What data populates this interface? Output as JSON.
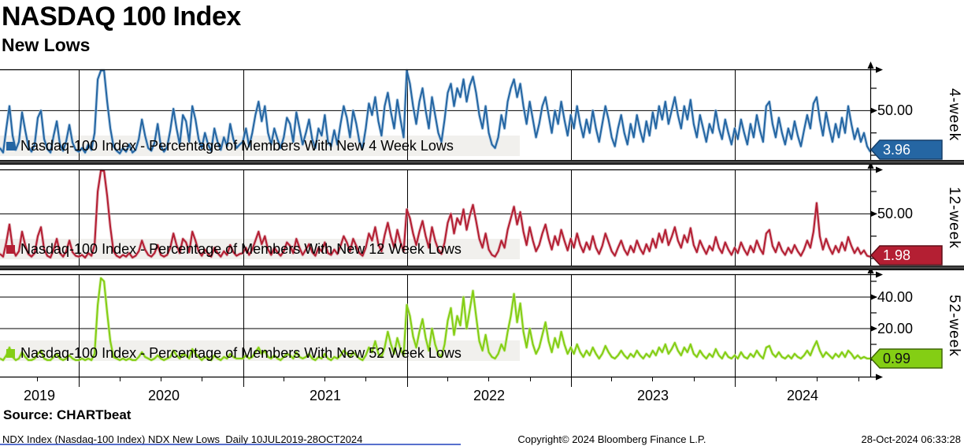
{
  "header": {
    "title": "NASDAQ 100 Index",
    "subtitle": "New Lows"
  },
  "source_label": "Source: CHARTbeat",
  "footer": {
    "left": "NDX Index (Nasdaq-100 Index) NDX New Lows  Daily 10JUL2019-28OCT2024",
    "center": "Copyright© 2024 Bloomberg Finance L.P.",
    "right": "28-Oct-2024 06:33:28"
  },
  "x_axis": {
    "years": [
      "2019",
      "2020",
      "2021",
      "2022",
      "2023",
      "2024"
    ]
  },
  "chart_data": {
    "type": "line",
    "title": "NASDAQ 100 Index - New Lows",
    "x_range": "10JUL2019-28OCT2024",
    "frequency": "Daily (represented at weekly resolution)",
    "legend_position": "inside-bottom-left",
    "grid": true,
    "panels": [
      {
        "axis_label": "4-week",
        "legend": "Nasdaq-100 Index - Percentage of Members With New 4 Week Lows",
        "color": "#2566a3",
        "halo": "#a8c6e0",
        "flag_border": "#163f69",
        "flag_text_color": "#ffffff",
        "last_value": 3.96,
        "last_value_label": "3.96",
        "ylim": [
          0,
          96
        ],
        "tick_labels": [
          {
            "value": 50,
            "label": "50.00"
          }
        ],
        "values": [
          8,
          3,
          30,
          55,
          22,
          6,
          15,
          48,
          28,
          10,
          4,
          12,
          42,
          50,
          18,
          7,
          3,
          22,
          38,
          12,
          5,
          16,
          34,
          14,
          6,
          4,
          8,
          3,
          12,
          6,
          25,
          85,
          100,
          96,
          60,
          30,
          10,
          5,
          2,
          8,
          4,
          12,
          3,
          6,
          18,
          40,
          22,
          8,
          5,
          14,
          35,
          10,
          4,
          9,
          28,
          52,
          30,
          12,
          45,
          38,
          15,
          55,
          40,
          18,
          8,
          25,
          12,
          5,
          30,
          15,
          6,
          20,
          10,
          35,
          18,
          8,
          12,
          15,
          30,
          10,
          25,
          45,
          60,
          38,
          55,
          25,
          12,
          30,
          18,
          8,
          20,
          42,
          35,
          15,
          48,
          30,
          12,
          25,
          40,
          18,
          8,
          30,
          22,
          45,
          15,
          10,
          28,
          12,
          35,
          55,
          42,
          20,
          50,
          35,
          15,
          8,
          30,
          58,
          45,
          65,
          38,
          22,
          55,
          70,
          48,
          30,
          62,
          40,
          20,
          95,
          80,
          55,
          35,
          60,
          75,
          50,
          30,
          65,
          45,
          25,
          15,
          40,
          70,
          80,
          55,
          75,
          65,
          85,
          60,
          78,
          88,
          70,
          45,
          30,
          55,
          25,
          12,
          8,
          20,
          45,
          30,
          60,
          75,
          85,
          65,
          80,
          55,
          35,
          60,
          40,
          20,
          35,
          55,
          65,
          45,
          25,
          50,
          35,
          60,
          40,
          22,
          45,
          30,
          55,
          35,
          20,
          40,
          25,
          50,
          30,
          15,
          35,
          55,
          40,
          20,
          10,
          30,
          45,
          25,
          12,
          35,
          20,
          45,
          28,
          15,
          38,
          22,
          48,
          30,
          55,
          40,
          60,
          35,
          50,
          65,
          45,
          30,
          55,
          40,
          62,
          35,
          20,
          45,
          30,
          15,
          35,
          25,
          50,
          30,
          18,
          40,
          25,
          12,
          30,
          18,
          40,
          25,
          12,
          35,
          20,
          45,
          28,
          15,
          55,
          60,
          35,
          20,
          42,
          25,
          12,
          30,
          18,
          38,
          22,
          10,
          28,
          45,
          30,
          58,
          65,
          40,
          22,
          48,
          30,
          15,
          35,
          20,
          42,
          25,
          55,
          35,
          18,
          30,
          15,
          25,
          10,
          3.96
        ]
      },
      {
        "axis_label": "12-week",
        "legend": "Nasdaq-100 Index - Percentage of Members With New 12 Week Lows",
        "color": "#b41f33",
        "halo": "#dca6af",
        "flag_border": "#5f0e18",
        "flag_text_color": "#ffffff",
        "last_value": 1.98,
        "last_value_label": "1.98",
        "ylim": [
          0,
          99
        ],
        "tick_labels": [
          {
            "value": 50,
            "label": "50.00"
          }
        ],
        "values": [
          5,
          2,
          18,
          38,
          12,
          3,
          8,
          30,
          15,
          5,
          2,
          6,
          25,
          35,
          10,
          3,
          1,
          10,
          22,
          6,
          2,
          8,
          20,
          7,
          3,
          2,
          4,
          1,
          6,
          3,
          15,
          75,
          100,
          98,
          70,
          35,
          8,
          3,
          1,
          4,
          2,
          6,
          1,
          3,
          8,
          20,
          10,
          4,
          2,
          6,
          15,
          4,
          2,
          4,
          12,
          28,
          15,
          6,
          22,
          18,
          7,
          30,
          20,
          8,
          3,
          10,
          5,
          2,
          12,
          6,
          2,
          8,
          4,
          15,
          7,
          3,
          5,
          6,
          12,
          4,
          10,
          20,
          30,
          16,
          25,
          10,
          4,
          12,
          7,
          3,
          8,
          18,
          14,
          6,
          22,
          12,
          4,
          10,
          16,
          7,
          3,
          12,
          8,
          18,
          6,
          4,
          10,
          5,
          14,
          25,
          18,
          8,
          22,
          14,
          6,
          3,
          12,
          28,
          20,
          35,
          16,
          8,
          26,
          40,
          24,
          12,
          32,
          18,
          8,
          55,
          45,
          28,
          15,
          30,
          42,
          25,
          12,
          35,
          20,
          10,
          5,
          18,
          40,
          50,
          28,
          45,
          38,
          55,
          32,
          48,
          60,
          42,
          22,
          12,
          28,
          10,
          4,
          2,
          8,
          20,
          12,
          32,
          45,
          58,
          38,
          52,
          30,
          15,
          35,
          20,
          8,
          15,
          28,
          38,
          22,
          10,
          25,
          15,
          32,
          20,
          9,
          22,
          12,
          28,
          15,
          7,
          18,
          10,
          25,
          12,
          5,
          14,
          28,
          18,
          8,
          3,
          12,
          20,
          10,
          4,
          14,
          7,
          20,
          11,
          5,
          16,
          8,
          22,
          12,
          28,
          18,
          32,
          15,
          24,
          35,
          20,
          12,
          26,
          18,
          34,
          15,
          7,
          20,
          12,
          5,
          14,
          9,
          24,
          12,
          6,
          18,
          10,
          4,
          12,
          6,
          18,
          10,
          4,
          14,
          7,
          20,
          11,
          5,
          28,
          32,
          14,
          7,
          18,
          9,
          4,
          12,
          6,
          15,
          8,
          3,
          10,
          20,
          12,
          30,
          62,
          25,
          10,
          22,
          12,
          5,
          14,
          7,
          18,
          9,
          24,
          14,
          6,
          12,
          5,
          9,
          3,
          1.98
        ]
      },
      {
        "axis_label": "52-week",
        "legend": "Nasdaq-100 Index - Percentage of Members With New 52 Week Lows",
        "color": "#84ce14",
        "halo": "#cdeb9e",
        "flag_border": "#3f6606",
        "flag_text_color": "#111111",
        "last_value": 0.99,
        "last_value_label": "0.99",
        "ylim": [
          0,
          54
        ],
        "tick_labels": [
          {
            "value": 40,
            "label": "40.00"
          },
          {
            "value": 20,
            "label": "20.00"
          }
        ],
        "values": [
          1,
          0,
          3,
          8,
          2,
          0,
          1,
          5,
          2,
          0,
          0,
          1,
          4,
          6,
          1,
          0,
          0,
          2,
          4,
          1,
          0,
          1,
          3,
          1,
          0,
          0,
          1,
          0,
          1,
          0,
          4,
          35,
          52,
          50,
          30,
          12,
          2,
          1,
          0,
          1,
          0,
          1,
          0,
          0,
          2,
          5,
          2,
          1,
          0,
          1,
          3,
          1,
          0,
          1,
          2,
          6,
          3,
          1,
          4,
          3,
          1,
          7,
          4,
          2,
          0,
          2,
          1,
          0,
          3,
          1,
          0,
          2,
          1,
          4,
          2,
          1,
          1,
          1,
          3,
          1,
          2,
          5,
          8,
          4,
          6,
          2,
          1,
          3,
          1,
          0,
          2,
          4,
          3,
          1,
          5,
          2,
          1,
          2,
          4,
          1,
          0,
          2,
          1,
          4,
          1,
          0,
          2,
          1,
          3,
          6,
          4,
          2,
          5,
          3,
          1,
          0,
          3,
          8,
          5,
          12,
          4,
          2,
          8,
          18,
          10,
          4,
          14,
          7,
          3,
          35,
          28,
          15,
          8,
          18,
          26,
          14,
          6,
          20,
          10,
          4,
          2,
          10,
          25,
          33,
          16,
          28,
          22,
          40,
          20,
          32,
          44,
          28,
          12,
          6,
          16,
          5,
          2,
          1,
          4,
          10,
          6,
          18,
          28,
          42,
          24,
          36,
          18,
          8,
          20,
          10,
          4,
          8,
          16,
          24,
          12,
          5,
          14,
          8,
          18,
          10,
          4,
          8,
          4,
          10,
          5,
          2,
          6,
          3,
          8,
          4,
          1,
          4,
          9,
          5,
          2,
          1,
          3,
          6,
          3,
          1,
          4,
          2,
          6,
          3,
          1,
          4,
          2,
          6,
          3,
          8,
          5,
          10,
          4,
          7,
          11,
          6,
          3,
          8,
          5,
          10,
          4,
          2,
          6,
          3,
          1,
          4,
          2,
          7,
          3,
          1,
          5,
          2,
          1,
          3,
          1,
          5,
          2,
          1,
          4,
          2,
          6,
          3,
          1,
          8,
          9,
          4,
          2,
          5,
          2,
          1,
          3,
          1,
          4,
          2,
          1,
          3,
          6,
          3,
          8,
          12,
          6,
          2,
          5,
          3,
          1,
          4,
          2,
          5,
          2,
          6,
          4,
          1,
          3,
          1,
          2,
          1,
          0.99
        ]
      }
    ]
  }
}
